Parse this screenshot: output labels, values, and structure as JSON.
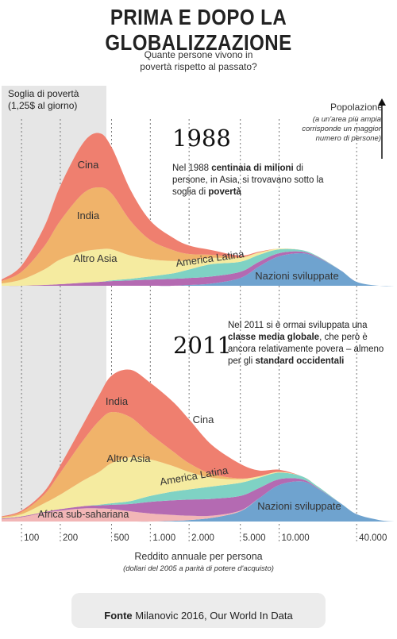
{
  "title": "PRIMA E DOPO LA GLOBALIZZAZIONE",
  "subtitle_line1": "Quante persone vivono in",
  "subtitle_line2": "povertà rispetto al passato?",
  "poverty_line_label_1": "Soglia di povertà",
  "poverty_line_label_2": "(1,25$ al giorno)",
  "population_label": "Popolazione",
  "population_note": [
    "(a un'area più ampia",
    "corrisponde un maggior",
    "numero di persone)"
  ],
  "panel_1988": {
    "year": "1988",
    "note_parts": [
      "Nel 1988 ",
      "centinaia di milioni",
      " di persone, in Asia, si trovavano sotto la soglia di ",
      "povertà"
    ]
  },
  "panel_2011": {
    "year": "2011",
    "note_parts": [
      "Nel 2011 si è ormai sviluppata una ",
      "classe media globale",
      ", che però è ancora relativamente povera – almeno per gli ",
      "standard occidentali"
    ]
  },
  "x_axis_title": "Reddito annuale per persona",
  "x_axis_subtitle": "(dollari del 2005 a parità di potere d'acquisto)",
  "source_label": "Fonte",
  "source_text": "Milanovic 2016, Our World In Data",
  "chart_data": {
    "type": "area",
    "x_scale": "log",
    "x_ticks": [
      {
        "value": 100,
        "label": "100"
      },
      {
        "value": 200,
        "label": "200"
      },
      {
        "value": 500,
        "label": "500"
      },
      {
        "value": 1000,
        "label": "1.000"
      },
      {
        "value": 2000,
        "label": "2.000"
      },
      {
        "value": 5000,
        "label": "5.000"
      },
      {
        "value": 10000,
        "label": "10.000"
      },
      {
        "value": 40000,
        "label": "40.000"
      }
    ],
    "xlim": [
      70,
      80000
    ],
    "poverty_line_income": 456,
    "x": [
      70,
      100,
      150,
      200,
      300,
      400,
      500,
      700,
      1000,
      1500,
      2000,
      3000,
      5000,
      7000,
      10000,
      15000,
      20000,
      30000,
      40000,
      60000,
      80000
    ],
    "colors": {
      "Nazioni sviluppate": "#6fa3cf",
      "America Latina": "#7fd2c4",
      "Africa sub-sahariana": "#f2b6b6",
      "Altro Asia": "#f5eba0",
      "India": "#f0b36a",
      "Cina": "#ef7f6f",
      "Altro": "#b46ab2"
    },
    "charts": [
      {
        "year": "1988",
        "ylim": [
          0,
          210
        ],
        "series": [
          {
            "name": "Nazioni sviluppate",
            "values": [
              0,
              0,
              0,
              0,
              0,
              0,
              0,
              0,
              0,
              0,
              1,
              3,
              10,
              25,
              38,
              42,
              36,
              20,
              5,
              0,
              0
            ]
          },
          {
            "name": "",
            "values": [
              0,
              0,
              1,
              2,
              4,
              5,
              6,
              7,
              8,
              9,
              9,
              9,
              8,
              6,
              4,
              2,
              1,
              0,
              0,
              0,
              0
            ]
          },
          {
            "name": "America Latina",
            "values": [
              0,
              0,
              0,
              0,
              0,
              0,
              1,
              2,
              4,
              7,
              11,
              16,
              13,
              9,
              5,
              2,
              1,
              0,
              0,
              0,
              0
            ]
          },
          {
            "name": "Altro Asia",
            "values": [
              3,
              8,
              20,
              32,
              40,
              42,
              40,
              30,
              22,
              16,
              12,
              8,
              5,
              3,
              1,
              0,
              0,
              0,
              0,
              0,
              0
            ]
          },
          {
            "name": "India",
            "values": [
              3,
              10,
              30,
              50,
              75,
              80,
              72,
              45,
              25,
              14,
              8,
              4,
              1,
              0,
              0,
              0,
              0,
              0,
              0,
              0,
              0
            ]
          },
          {
            "name": "Cina",
            "values": [
              2,
              8,
              25,
              45,
              65,
              70,
              60,
              40,
              25,
              16,
              11,
              6,
              2,
              1,
              0,
              0,
              0,
              0,
              0,
              0,
              0
            ]
          }
        ]
      },
      {
        "year": "2011",
        "ylim": [
          0,
          260
        ],
        "series": [
          {
            "name": "Nazioni sviluppate",
            "values": [
              0,
              0,
              0,
              0,
              0,
              0,
              0,
              0,
              0,
              1,
              2,
              5,
              14,
              32,
              50,
              55,
              45,
              25,
              10,
              2,
              0
            ]
          },
          {
            "name": "Africa sub-sahariana",
            "values": [
              3,
              6,
              12,
              15,
              18,
              18,
              17,
              14,
              11,
              8,
              6,
              3,
              1,
              0,
              0,
              0,
              0,
              0,
              0,
              0,
              0
            ]
          },
          {
            "name": "",
            "values": [
              1,
              1,
              1,
              2,
              3,
              4,
              6,
              10,
              16,
              20,
              22,
              23,
              20,
              14,
              8,
              3,
              1,
              0,
              0,
              0,
              0
            ]
          },
          {
            "name": "America Latina",
            "values": [
              0,
              0,
              0,
              0,
              0,
              1,
              2,
              4,
              8,
              12,
              14,
              17,
              18,
              14,
              9,
              4,
              2,
              0,
              0,
              0,
              0
            ]
          },
          {
            "name": "Altro Asia",
            "values": [
              1,
              3,
              12,
              20,
              35,
              45,
              55,
              60,
              50,
              35,
              24,
              12,
              5,
              2,
              1,
              0,
              0,
              0,
              0,
              0,
              0
            ]
          },
          {
            "name": "India",
            "values": [
              1,
              3,
              12,
              30,
              55,
              70,
              70,
              55,
              35,
              20,
              12,
              5,
              1,
              0,
              0,
              0,
              0,
              0,
              0,
              0,
              0
            ]
          },
          {
            "name": "Cina",
            "values": [
              1,
              2,
              4,
              10,
              22,
              35,
              50,
              65,
              70,
              68,
              60,
              40,
              20,
              8,
              3,
              0,
              0,
              0,
              0,
              0,
              0
            ]
          }
        ]
      }
    ]
  }
}
